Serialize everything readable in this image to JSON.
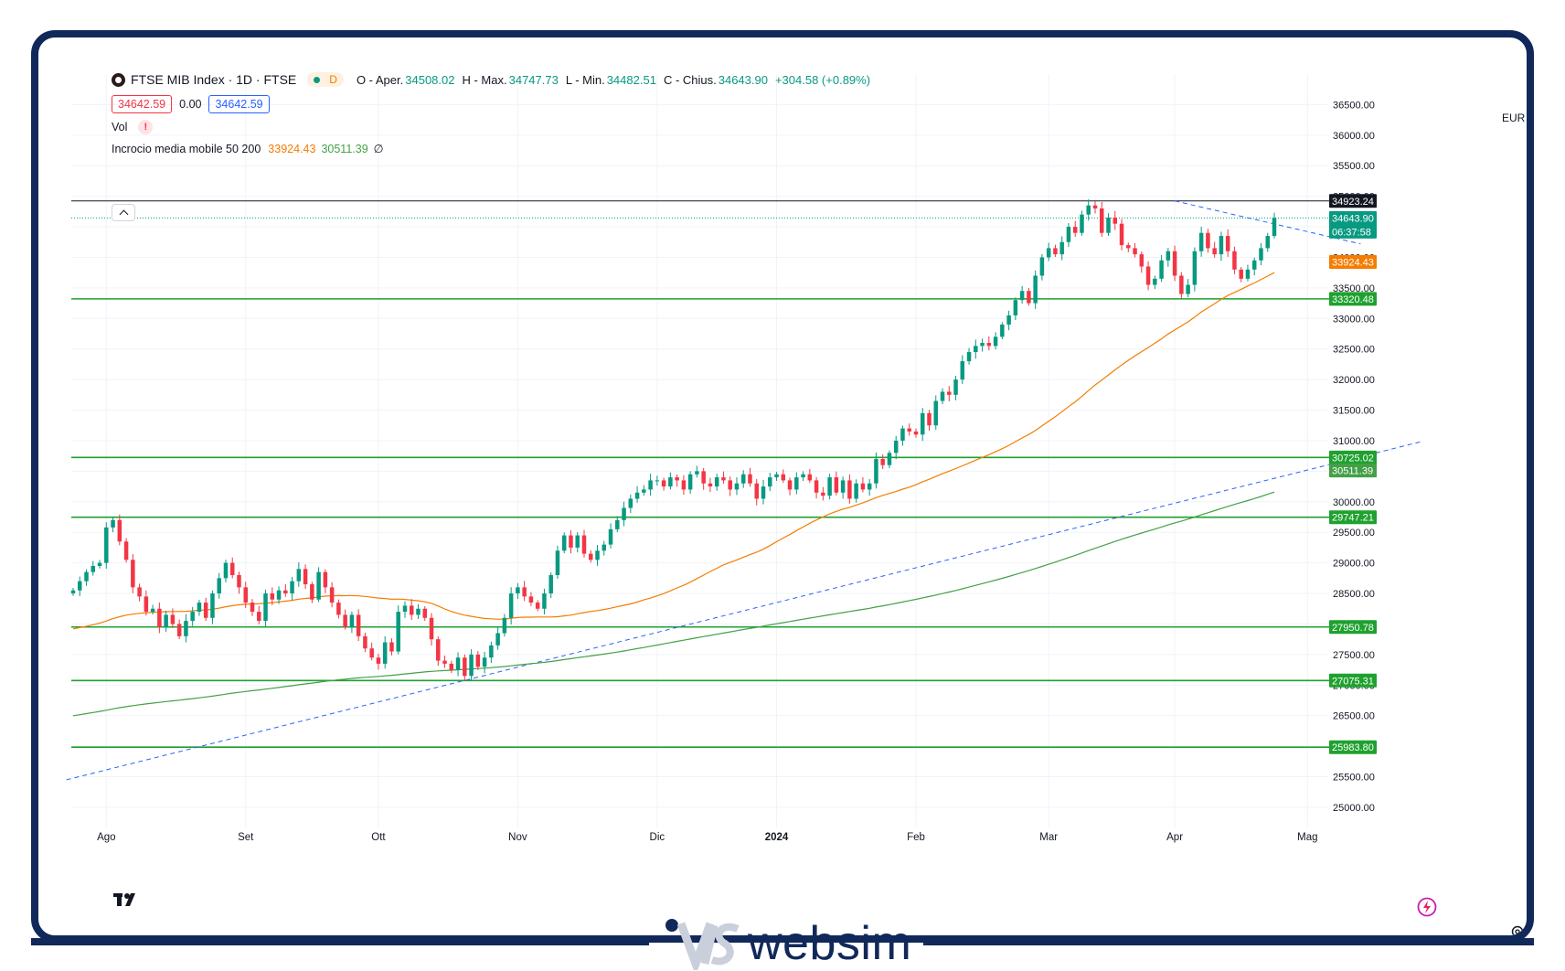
{
  "header": {
    "symbol_title": "FTSE MIB Index · 1D · FTSE",
    "status_letter": "D",
    "ohlc": {
      "open_label": "O - Aper.",
      "open": "34508.02",
      "high_label": "H - Max.",
      "high": "34747.73",
      "low_label": "L - Min.",
      "low": "34482.51",
      "close_label": "C - Chius.",
      "close": "34643.90",
      "change": "+304.58 (+0.89%)"
    },
    "bid": "34642.59",
    "spread": "0.00",
    "ask": "34642.59",
    "vol_label": "Vol",
    "vol_warning": "!",
    "indicator": {
      "name": "Incrocio media mobile 50 200",
      "ma50": "33924.43",
      "ma200": "30511.39",
      "extra": "∅"
    },
    "currency": "EUR"
  },
  "colors": {
    "up": "#089981",
    "down": "#f23645",
    "ma50": "#f57c00",
    "ma200": "#43a047",
    "level_line": "#1fa12f",
    "trendline": "#2962ff",
    "frame": "#11285a"
  },
  "chart_data": {
    "type": "candlestick",
    "ylim": [
      24850,
      36700
    ],
    "y_ticks": [
      "36500.00",
      "36000.00",
      "35500.00",
      "35000.00",
      "34500.00",
      "34000.00",
      "33500.00",
      "33000.00",
      "32500.00",
      "32000.00",
      "31500.00",
      "31000.00",
      "30500.00",
      "30000.00",
      "29500.00",
      "29000.00",
      "28500.00",
      "28000.00",
      "27500.00",
      "27000.00",
      "26500.00",
      "26000.00",
      "25500.00",
      "25000.00"
    ],
    "x_labels": [
      {
        "label": "Ago",
        "day": 5
      },
      {
        "label": "Set",
        "day": 26
      },
      {
        "label": "Ott",
        "day": 46
      },
      {
        "label": "Nov",
        "day": 67
      },
      {
        "label": "Dic",
        "day": 88
      },
      {
        "label": "2024",
        "day": 106
      },
      {
        "label": "Feb",
        "day": 127
      },
      {
        "label": "Mar",
        "day": 147
      },
      {
        "label": "Apr",
        "day": 166
      },
      {
        "label": "Mag",
        "day": 186
      }
    ],
    "price_levels": [
      {
        "value": 33320.48,
        "label": "33320.48"
      },
      {
        "value": 30725.02,
        "label": "30725.02"
      },
      {
        "value": 29747.21,
        "label": "29747.21"
      },
      {
        "value": 27950.78,
        "label": "27950.78"
      },
      {
        "value": 27075.31,
        "label": "27075.31"
      },
      {
        "value": 25983.8,
        "label": "25983.80"
      }
    ],
    "max_line": {
      "value": 34923.24,
      "label": "34923.24"
    },
    "last_price": {
      "value": 34643.9,
      "label": "34643.90",
      "countdown": "06:37:58"
    },
    "ma_labels": {
      "ma50": {
        "value": 33924.43,
        "label": "33924.43"
      },
      "ma200": {
        "value": 30511.39,
        "label": "30511.39"
      }
    },
    "trendlines": [
      {
        "x1": -1,
        "y1": 25450,
        "x2": 203,
        "y2": 30980
      },
      {
        "x1": 166,
        "y1": 34923,
        "x2": 194,
        "y2": 34220
      }
    ],
    "closes": [
      28550,
      28700,
      28850,
      28950,
      29000,
      29580,
      29700,
      29350,
      29050,
      28600,
      28450,
      28200,
      28250,
      27950,
      28150,
      28000,
      27800,
      28050,
      28200,
      28350,
      28100,
      28500,
      28750,
      29000,
      28800,
      28600,
      28350,
      28200,
      28050,
      28500,
      28400,
      28550,
      28500,
      28700,
      28900,
      28650,
      28400,
      28850,
      28600,
      28350,
      28150,
      27950,
      28150,
      27800,
      27600,
      27450,
      27350,
      27700,
      27550,
      28200,
      28300,
      28150,
      28250,
      28100,
      27750,
      27400,
      27350,
      27250,
      27450,
      27150,
      27500,
      27300,
      27450,
      27650,
      27850,
      28100,
      28500,
      28600,
      28450,
      28350,
      28250,
      28500,
      28800,
      29200,
      29450,
      29250,
      29450,
      29150,
      29050,
      29200,
      29300,
      29550,
      29700,
      29900,
      30050,
      30150,
      30200,
      30350,
      30350,
      30250,
      30400,
      30350,
      30200,
      30450,
      30500,
      30300,
      30250,
      30400,
      30350,
      30200,
      30300,
      30450,
      30300,
      30050,
      30250,
      30400,
      30450,
      30350,
      30200,
      30400,
      30450,
      30350,
      30150,
      30100,
      30400,
      30150,
      30350,
      30050,
      30300,
      30200,
      30300,
      30700,
      30600,
      30800,
      31000,
      31200,
      31150,
      31100,
      31450,
      31250,
      31650,
      31800,
      31750,
      32000,
      32300,
      32450,
      32550,
      32600,
      32550,
      32700,
      32900,
      33050,
      33300,
      33450,
      33250,
      33700,
      34000,
      34150,
      34050,
      34250,
      34500,
      34400,
      34700,
      34850,
      34800,
      34400,
      34650,
      34550,
      34200,
      34150,
      34050,
      33850,
      33550,
      33650,
      33950,
      34100,
      33700,
      33400,
      33550,
      34100,
      34400,
      34150,
      34050,
      34350,
      34100,
      33800,
      33650,
      33800,
      33950,
      34150,
      34350,
      34643.9
    ],
    "opens_first": 28500
  }
}
